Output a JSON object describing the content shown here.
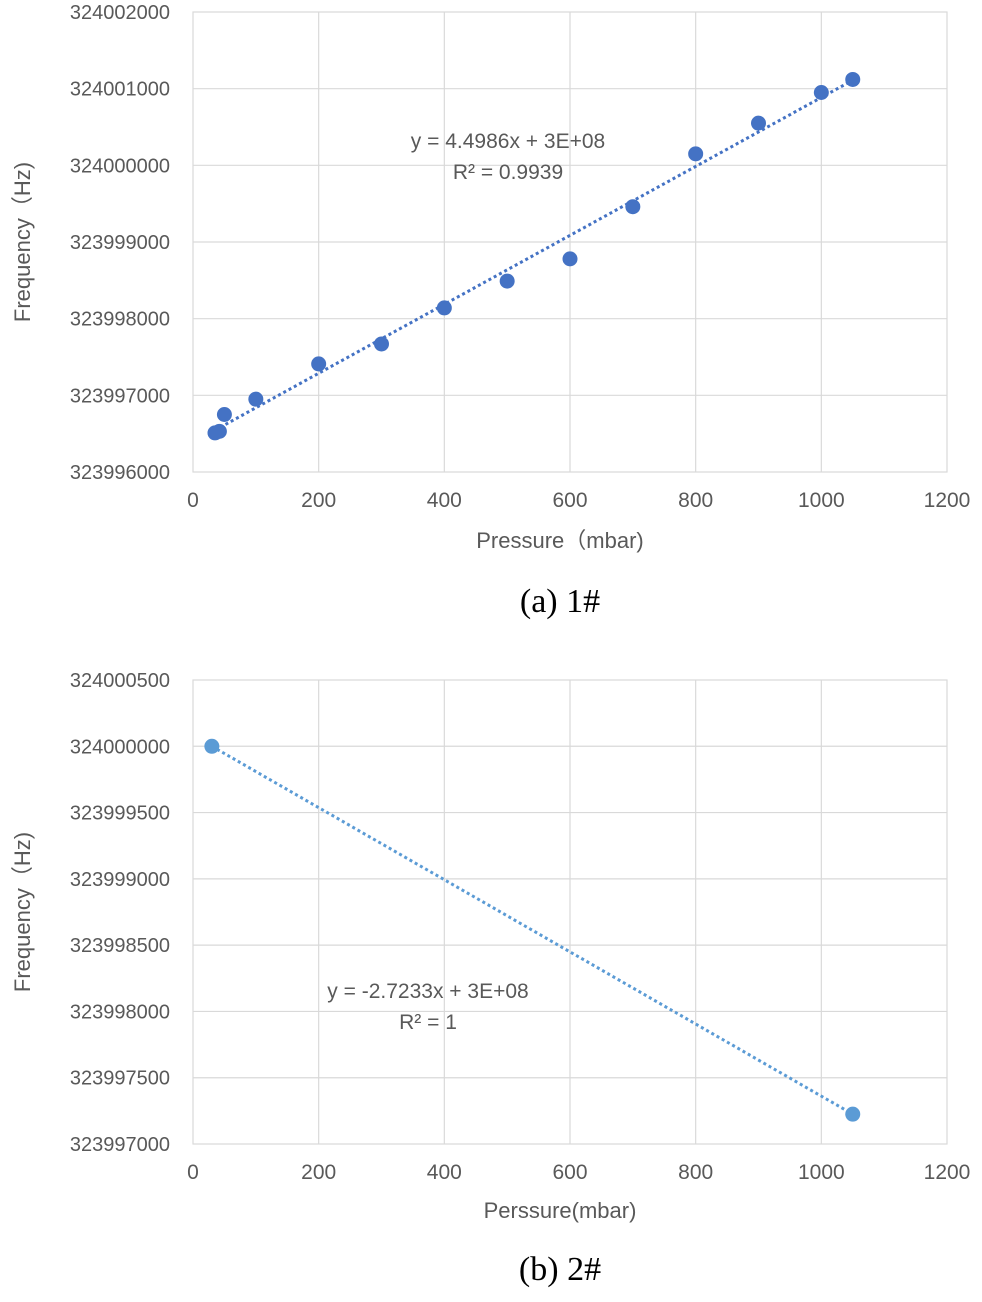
{
  "chart_data": [
    {
      "type": "scatter",
      "xlabel": "Pressure（mbar)",
      "ylabel": "Frequency（Hz)",
      "xlim": [
        0,
        1200
      ],
      "ylim": [
        323996000,
        324002000
      ],
      "x_ticks": [
        "0",
        "200",
        "400",
        "600",
        "800",
        "1000",
        "1200"
      ],
      "y_ticks": [
        "323996000",
        "323997000",
        "323998000",
        "323999000",
        "324000000",
        "324001000",
        "324002000"
      ],
      "grid": true,
      "trendline": {
        "style": "dotted linear",
        "equation": "y = 4.4986x + 3E+08",
        "r2": "R² = 0.9939"
      },
      "series": [
        {
          "color": "#4472c4",
          "x": [
            35,
            42,
            50,
            100,
            200,
            300,
            400,
            500,
            600,
            700,
            800,
            900,
            1000,
            1050
          ],
          "y": [
            323996510,
            323996530,
            323996750,
            323996950,
            323997410,
            323997670,
            323998140,
            323998490,
            323998780,
            323999460,
            324000150,
            324000550,
            324000950,
            324001120
          ]
        }
      ],
      "caption": "(a)  1#"
    },
    {
      "type": "scatter",
      "xlabel": "Perssure(mbar)",
      "ylabel": "Frequency（Hz)",
      "xlim": [
        0,
        1200
      ],
      "ylim": [
        323997000,
        324000500
      ],
      "x_ticks": [
        "0",
        "200",
        "400",
        "600",
        "800",
        "1000",
        "1200"
      ],
      "y_ticks": [
        "323997000",
        "323997500",
        "323998000",
        "323998500",
        "323999000",
        "323999500",
        "324000000",
        "324000500"
      ],
      "grid": true,
      "trendline": {
        "style": "dotted linear",
        "equation": "y = -2.7233x + 3E+08",
        "r2": "R² = 1"
      },
      "series": [
        {
          "color": "#5b9bd5",
          "x": [
            30,
            1050
          ],
          "y": [
            324000000,
            323997225
          ]
        }
      ],
      "caption": "(b)  2#"
    }
  ]
}
